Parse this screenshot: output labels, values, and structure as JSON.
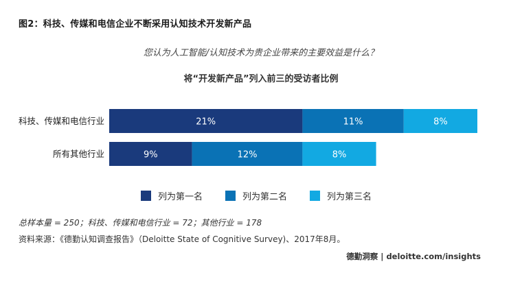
{
  "header": {
    "figure_title": "图2：科技、传媒和电信企业不断采用认知技术开发新产品",
    "question": "您认为人工智能/认知技术为贵企业带来的主要效益是什么？",
    "subtitle": "将“开发新产品”列入前三的受访者比例"
  },
  "chart_data": {
    "type": "bar",
    "orientation": "horizontal",
    "stacked": true,
    "categories": [
      "科技、传媒和电信行业",
      "所有其他行业"
    ],
    "series": [
      {
        "name": "列为第一名",
        "values": [
          21,
          9
        ],
        "labels": [
          "21%",
          "9%"
        ],
        "color": "#1a3a7c"
      },
      {
        "name": "列为第二名",
        "values": [
          11,
          12
        ],
        "labels": [
          "11%",
          "12%"
        ],
        "color": "#0a72b5"
      },
      {
        "name": "列为第三名",
        "values": [
          8,
          8
        ],
        "labels": [
          "8%",
          "8%"
        ],
        "color": "#12a9e2"
      }
    ],
    "unit": "%",
    "grid": false,
    "legend_position": "bottom"
  },
  "footer": {
    "sample_note": "总样本量 = 250；科技、传媒和电信行业 = 72；其他行业 = 178",
    "source": "资料来源：《德勤认知调查报告》（Deloitte State of Cognitive Survey)、2017年8月。",
    "brand": "德勤洞察 | deloitte.com/insights"
  }
}
